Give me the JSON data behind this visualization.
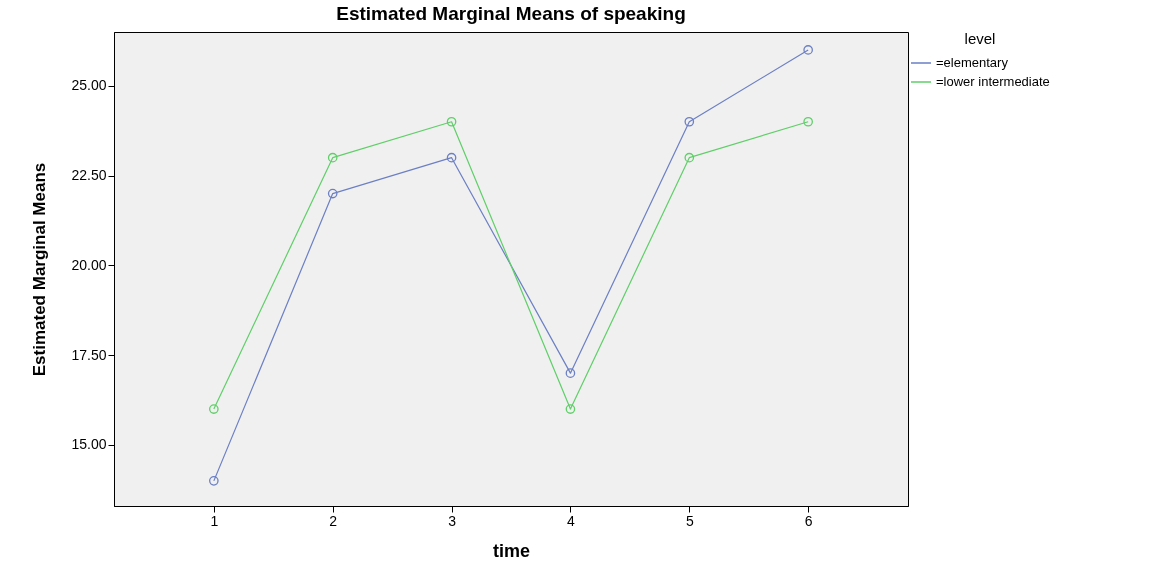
{
  "chart_data": {
    "type": "line",
    "title": "Estimated Marginal Means of speaking",
    "xlabel": "time",
    "ylabel": "Estimated Marginal Means",
    "legend_title": "level",
    "x": [
      1,
      2,
      3,
      4,
      5,
      6
    ],
    "series": [
      {
        "name": "=elementary",
        "color": "#6b7fc4",
        "values": [
          14,
          22,
          23,
          17,
          24,
          26
        ]
      },
      {
        "name": "=lower intermediate",
        "color": "#5fcf68",
        "values": [
          16,
          23,
          24,
          16,
          23,
          24
        ]
      }
    ],
    "xlim": [
      0.16,
      6.84
    ],
    "xticks": [
      1,
      2,
      3,
      4,
      5,
      6
    ],
    "ylim": [
      13.3,
      26.5
    ],
    "yticks": [
      {
        "value": 15,
        "label": "15.00"
      },
      {
        "value": 17.5,
        "label": "17.50"
      },
      {
        "value": 20,
        "label": "20.00"
      },
      {
        "value": 22.5,
        "label": "22.50"
      },
      {
        "value": 25,
        "label": "25.00"
      }
    ],
    "legend": "top right",
    "marker": "circle",
    "line_style": "solid",
    "grid": false
  }
}
